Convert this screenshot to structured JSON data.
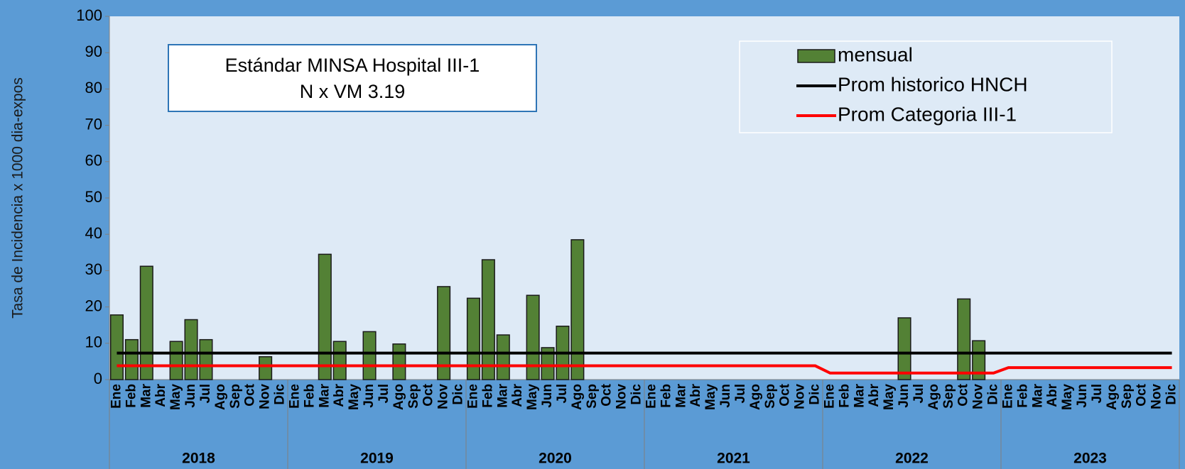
{
  "chart_data": {
    "type": "bar",
    "ylabel": "Tasa de Incidencia x 1000 dia-expos",
    "annotation": [
      "Estándar MINSA Hospital III-1",
      "N x VM 3.19"
    ],
    "categories": [
      "Ene",
      "Feb",
      "Mar",
      "Abr",
      "May",
      "Jun",
      "Jul",
      "Ago",
      "Sep",
      "Oct",
      "Nov",
      "Dic",
      "Ene",
      "Feb",
      "Mar",
      "Abr",
      "May",
      "Jun",
      "Jul",
      "Ago",
      "Sep",
      "Oct",
      "Nov",
      "Dic",
      "Ene",
      "Feb",
      "Mar",
      "Abr",
      "May",
      "Jun",
      "Jul",
      "Ago",
      "Sep",
      "Oct",
      "Nov",
      "Dic",
      "Ene",
      "Feb",
      "Mar",
      "Abr",
      "May",
      "Jun",
      "Jul",
      "Ago",
      "Sep",
      "Oct",
      "Nov",
      "Dic",
      "Ene",
      "Feb",
      "Mar",
      "Abr",
      "May",
      "Jun",
      "Jul",
      "Ago",
      "Sep",
      "Oct",
      "Nov",
      "Dic",
      "Ene",
      "Feb",
      "Mar",
      "Abr",
      "May",
      "Jun",
      "Jul",
      "Ago",
      "Sep",
      "Oct",
      "Nov",
      "Dic"
    ],
    "groups": [
      "2018",
      "2019",
      "2020",
      "2021",
      "2022",
      "2023"
    ],
    "ylim": [
      0,
      100
    ],
    "yticks": [
      0,
      10,
      20,
      30,
      40,
      50,
      60,
      70,
      80,
      90,
      100
    ],
    "legend": "upper right",
    "series": [
      {
        "name": "mensual",
        "type": "bar",
        "color": "#538135",
        "values": [
          17.8,
          11,
          31.2,
          0,
          10.5,
          16.5,
          11,
          0,
          0,
          0,
          6.3,
          0,
          0,
          0,
          34.5,
          10.5,
          0,
          13.2,
          0,
          9.8,
          0,
          0,
          25.6,
          0,
          22.4,
          33,
          12.3,
          0,
          23.2,
          8.8,
          14.7,
          38.5,
          0,
          0,
          0,
          0,
          0,
          0,
          0,
          0,
          0,
          0,
          0,
          0,
          0,
          0,
          0,
          0,
          0,
          0,
          0,
          0,
          0,
          17,
          0,
          0,
          0,
          22.2,
          10.7,
          0,
          0,
          0,
          0,
          0,
          0,
          0,
          0,
          0,
          0,
          0,
          0,
          0
        ]
      },
      {
        "name": "Prom historico HNCH",
        "type": "line",
        "color": "#000000",
        "values": [
          7.3,
          7.3,
          7.3,
          7.3,
          7.3,
          7.3,
          7.3,
          7.3,
          7.3,
          7.3,
          7.3,
          7.3,
          7.3,
          7.3,
          7.3,
          7.3,
          7.3,
          7.3,
          7.3,
          7.3,
          7.3,
          7.3,
          7.3,
          7.3,
          7.3,
          7.3,
          7.3,
          7.3,
          7.3,
          7.3,
          7.3,
          7.3,
          7.3,
          7.3,
          7.3,
          7.3,
          7.3,
          7.3,
          7.3,
          7.3,
          7.3,
          7.3,
          7.3,
          7.3,
          7.3,
          7.3,
          7.3,
          7.3,
          7.3,
          7.3,
          7.3,
          7.3,
          7.3,
          7.3,
          7.3,
          7.3,
          7.3,
          7.3,
          7.3,
          7.3,
          7.3,
          7.3,
          7.3,
          7.3,
          7.3,
          7.3,
          7.3,
          7.3,
          7.3,
          7.3,
          7.3,
          7.3
        ]
      },
      {
        "name": "Prom Categoria III-1",
        "type": "line",
        "color": "#ff0000",
        "values": [
          3.8,
          3.8,
          3.8,
          3.8,
          3.8,
          3.8,
          3.8,
          3.8,
          3.8,
          3.8,
          3.8,
          3.8,
          3.8,
          3.8,
          3.8,
          3.8,
          3.8,
          3.8,
          3.8,
          3.8,
          3.8,
          3.8,
          3.8,
          3.8,
          3.8,
          3.8,
          3.8,
          3.8,
          3.8,
          3.8,
          3.8,
          3.8,
          3.8,
          3.8,
          3.8,
          3.8,
          3.8,
          3.8,
          3.8,
          3.8,
          3.8,
          3.8,
          3.8,
          3.8,
          3.8,
          3.8,
          3.8,
          3.8,
          1.8,
          1.8,
          1.8,
          1.8,
          1.8,
          1.8,
          1.8,
          1.8,
          1.8,
          1.8,
          1.8,
          1.8,
          3.3,
          3.3,
          3.3,
          3.3,
          3.3,
          3.3,
          3.3,
          3.3,
          3.3,
          3.3,
          3.3,
          3.3
        ]
      }
    ]
  }
}
